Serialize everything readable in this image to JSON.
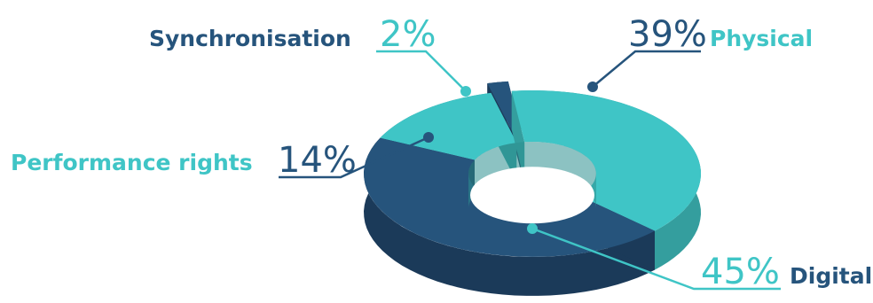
{
  "chart_data": {
    "type": "pie",
    "variant": "3d-donut",
    "title": "",
    "slices": [
      {
        "label": "Physical",
        "value": 39,
        "display": "39%",
        "color": "#3fc5c6",
        "side_color": "#349e9e"
      },
      {
        "label": "Digital",
        "value": 45,
        "display": "45%",
        "color": "#26547c",
        "side_color": "#1b3a59"
      },
      {
        "label": "Performance rights",
        "value": 14,
        "display": "14%",
        "color": "#3fc5c6",
        "side_color": "#349e9e"
      },
      {
        "label": "Synchronisation",
        "value": 2,
        "display": "2%",
        "color": "#26547c",
        "side_color": "#1b3a59"
      }
    ],
    "label_colors": {
      "dark": "#26547c",
      "light": "#3fc5c6"
    }
  }
}
